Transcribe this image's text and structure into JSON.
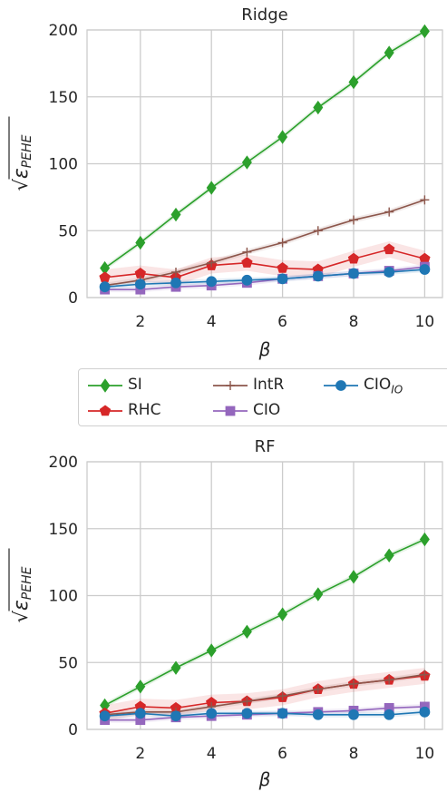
{
  "chart_data": [
    {
      "type": "line",
      "title": "Ridge",
      "xlabel": "β",
      "ylabel": "√ε_PEHE",
      "xlim": [
        0.5,
        10.5
      ],
      "ylim": [
        0,
        200
      ],
      "xticks": [
        2,
        4,
        6,
        8,
        10
      ],
      "yticks": [
        0,
        50,
        100,
        150,
        200
      ],
      "grid": true,
      "x": [
        1,
        2,
        3,
        4,
        5,
        6,
        7,
        8,
        9,
        10
      ],
      "series": [
        {
          "name": "SI",
          "values": [
            22,
            41,
            62,
            82,
            101,
            120,
            142,
            161,
            183,
            199
          ],
          "color": "#2ca02c",
          "marker": "diamond"
        },
        {
          "name": "RHC",
          "values": [
            15,
            18,
            15,
            24,
            26,
            22,
            21,
            29,
            36,
            29
          ],
          "color": "#d62728",
          "marker": "pentagon"
        },
        {
          "name": "IntR",
          "values": [
            9,
            13,
            19,
            26,
            34,
            41,
            50,
            58,
            64,
            73
          ],
          "color": "#8c564b",
          "marker": "plus"
        },
        {
          "name": "CIO",
          "values": [
            6,
            6,
            8,
            9,
            11,
            14,
            16,
            18,
            20,
            23
          ],
          "color": "#9467bd",
          "marker": "square"
        },
        {
          "name": "CIO_IO",
          "values": [
            8,
            10,
            11,
            12,
            13,
            14,
            16,
            18,
            19,
            21
          ],
          "color": "#1f77b4",
          "marker": "circle"
        }
      ]
    },
    {
      "type": "line",
      "title": "RF",
      "xlabel": "β",
      "ylabel": "√ε_PEHE",
      "xlim": [
        0.5,
        10.5
      ],
      "ylim": [
        0,
        200
      ],
      "xticks": [
        2,
        4,
        6,
        8,
        10
      ],
      "yticks": [
        0,
        50,
        100,
        150,
        200
      ],
      "grid": true,
      "x": [
        1,
        2,
        3,
        4,
        5,
        6,
        7,
        8,
        9,
        10
      ],
      "series": [
        {
          "name": "SI",
          "values": [
            18,
            32,
            46,
            59,
            73,
            86,
            101,
            114,
            130,
            142
          ],
          "color": "#2ca02c",
          "marker": "diamond"
        },
        {
          "name": "RHC",
          "values": [
            12,
            17,
            16,
            20,
            21,
            24,
            30,
            34,
            37,
            40
          ],
          "color": "#d62728",
          "marker": "pentagon"
        },
        {
          "name": "IntR",
          "values": [
            11,
            13,
            13,
            17,
            21,
            25,
            30,
            34,
            37,
            41
          ],
          "color": "#8c564b",
          "marker": "plus"
        },
        {
          "name": "CIO",
          "values": [
            7,
            7,
            9,
            10,
            11,
            12,
            13,
            14,
            16,
            17
          ],
          "color": "#9467bd",
          "marker": "square"
        },
        {
          "name": "CIO_IO",
          "values": [
            10,
            12,
            10,
            12,
            12,
            12,
            11,
            11,
            11,
            13
          ],
          "color": "#1f77b4",
          "marker": "circle"
        }
      ]
    }
  ],
  "legend": {
    "placement": "between-charts",
    "items": [
      {
        "label": "SI",
        "series": "SI"
      },
      {
        "label": "IntR",
        "series": "IntR"
      },
      {
        "label": "CIO",
        "sub": "IO",
        "series": "CIO_IO"
      },
      {
        "label": "RHC",
        "series": "RHC"
      },
      {
        "label": "CIO",
        "series": "CIO"
      }
    ]
  }
}
